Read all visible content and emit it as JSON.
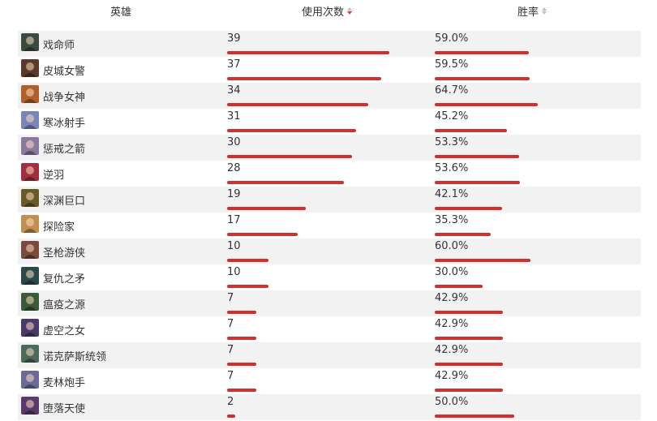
{
  "header": {
    "hero": "英雄",
    "uses": "使用次数",
    "winrate": "胜率"
  },
  "colors": {
    "bar": "#d03030",
    "sort_active": "#d83c3c",
    "sort_inactive": "#c0c0c0",
    "row_alt": "#f2f2f2"
  },
  "rows": [
    {
      "name": "戏命师",
      "uses": "39",
      "uses_value": 39,
      "winrate": "59.0%",
      "winrate_value": 59.0,
      "avatar_color": "#3a4a3f"
    },
    {
      "name": "皮城女警",
      "uses": "37",
      "uses_value": 37,
      "winrate": "59.5%",
      "winrate_value": 59.5,
      "avatar_color": "#5a3a2a"
    },
    {
      "name": "战争女神",
      "uses": "34",
      "uses_value": 34,
      "winrate": "64.7%",
      "winrate_value": 64.7,
      "avatar_color": "#b0602a"
    },
    {
      "name": "寒冰射手",
      "uses": "31",
      "uses_value": 31,
      "winrate": "45.2%",
      "winrate_value": 45.2,
      "avatar_color": "#7a86b8"
    },
    {
      "name": "惩戒之箭",
      "uses": "30",
      "uses_value": 30,
      "winrate": "53.3%",
      "winrate_value": 53.3,
      "avatar_color": "#8a7aa0"
    },
    {
      "name": "逆羽",
      "uses": "28",
      "uses_value": 28,
      "winrate": "53.6%",
      "winrate_value": 53.6,
      "avatar_color": "#a03040"
    },
    {
      "name": "深渊巨口",
      "uses": "19",
      "uses_value": 19,
      "winrate": "42.1%",
      "winrate_value": 42.1,
      "avatar_color": "#6a5a2a"
    },
    {
      "name": "探险家",
      "uses": "17",
      "uses_value": 17,
      "winrate": "35.3%",
      "winrate_value": 35.3,
      "avatar_color": "#c09050"
    },
    {
      "name": "圣枪游侠",
      "uses": "10",
      "uses_value": 10,
      "winrate": "60.0%",
      "winrate_value": 60.0,
      "avatar_color": "#7a4a3a"
    },
    {
      "name": "复仇之矛",
      "uses": "10",
      "uses_value": 10,
      "winrate": "30.0%",
      "winrate_value": 30.0,
      "avatar_color": "#2a4a4a"
    },
    {
      "name": "瘟疫之源",
      "uses": "7",
      "uses_value": 7,
      "winrate": "42.9%",
      "winrate_value": 42.9,
      "avatar_color": "#3a5a3a"
    },
    {
      "name": "虚空之女",
      "uses": "7",
      "uses_value": 7,
      "winrate": "42.9%",
      "winrate_value": 42.9,
      "avatar_color": "#4a3a6a"
    },
    {
      "name": "诺克萨斯统领",
      "uses": "7",
      "uses_value": 7,
      "winrate": "42.9%",
      "winrate_value": 42.9,
      "avatar_color": "#4a6a5a"
    },
    {
      "name": "麦林炮手",
      "uses": "7",
      "uses_value": 7,
      "winrate": "42.9%",
      "winrate_value": 42.9,
      "avatar_color": "#6a6a9a"
    },
    {
      "name": "堕落天使",
      "uses": "2",
      "uses_value": 2,
      "winrate": "50.0%",
      "winrate_value": 50.0,
      "avatar_color": "#5a3a6a"
    }
  ]
}
